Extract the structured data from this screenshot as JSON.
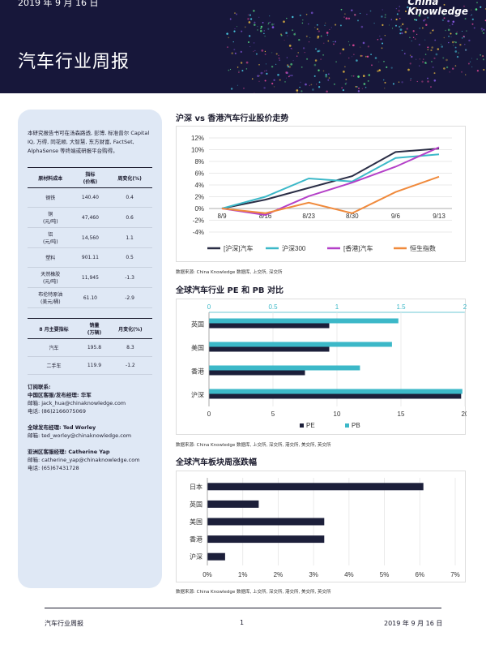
{
  "header": {
    "date": "2019 年 9 月 16 日",
    "title": "汽车行业周报",
    "logo_line1": "China",
    "logo_line2": "Knowledge"
  },
  "sidebar": {
    "intro": "本研究报告书可在汤森路透, 彭博, 标准普尔 Capital IQ, 万得, 同花顺, 大智慧, 东方财富, FactSet, AlphaSense 等终端或研报平台购得。",
    "table1": {
      "headers": [
        "原材料成本",
        "指标\n(价格)",
        "周变化(%)"
      ],
      "rows": [
        {
          "name": "钢铁",
          "value": "140.40",
          "change": "0.4"
        },
        {
          "name": "铜\n(元/吨)",
          "value": "47,460",
          "change": "0.6"
        },
        {
          "name": "铝\n(元/吨)",
          "value": "14,560",
          "change": "1.1"
        },
        {
          "name": "塑料",
          "value": "901.11",
          "change": "0.5"
        },
        {
          "name": "天然橡胶\n(元/吨)",
          "value": "11,945",
          "change": "-1.3"
        },
        {
          "name": "布伦特原油\n(美元/桶)",
          "value": "61.10",
          "change": "-2.9"
        }
      ]
    },
    "table2": {
      "headers": [
        "8 月主要指标",
        "销量\n(万辆)",
        "月变化(%)"
      ],
      "rows": [
        {
          "name": "汽车",
          "value": "195.8",
          "change": "8.3"
        },
        {
          "name": "二手车",
          "value": "119.9",
          "change": "-1.2"
        }
      ]
    },
    "contacts": {
      "c1_title": "订阅联系:",
      "c1_sub": "中国区客服/发布经理: 华军",
      "c1_email": "邮箱: jack_hua@chinaknowledge.com",
      "c1_phone": "电话: (86)2166075069",
      "c2_title": "全球发布经理: Ted Worley",
      "c2_email": "邮箱: ted_worley@chinaknowledge.com",
      "c3_title": "亚洲区客服经理: Catherine Yap",
      "c3_email": "邮箱: catherine_yap@chinaknowledge.com",
      "c3_phone": "电话: (65)67431728"
    }
  },
  "sections": {
    "s1_title": "沪深 vs 香港汽车行业股价走势",
    "s1_source": "数据来源: China Knowledge 数据库, 上交所, 深交所",
    "s2_title": "全球汽车行业 PE 和 PB 对比",
    "s2_source": "数据来源: China Knowledge 数据库, 上交所, 深交所, 港交所, 美交所, 英交所",
    "s3_title": "全球汽车板块周涨跌幅",
    "s3_source": "数据来源: China Knowledge 数据库, 上交所, 深交所, 港交所, 美交所, 英交所"
  },
  "footer": {
    "left": "汽车行业周报",
    "page": "1",
    "right": "2019 年 9 月 16 日"
  },
  "chart_data": [
    {
      "type": "line",
      "title": "沪深 vs 香港汽车行业股价走势",
      "x": [
        "8/9",
        "8/16",
        "8/23",
        "8/30",
        "9/6",
        "9/13"
      ],
      "ylim": [
        -4,
        12
      ],
      "yticks": [
        "12%",
        "10%",
        "8%",
        "6%",
        "4%",
        "2%",
        "0%",
        "-2%",
        "-4%"
      ],
      "legend_position": "bottom",
      "series": [
        {
          "name": "[沪深]汽车",
          "color": "#2a2d45",
          "values": [
            0,
            1.5,
            3.5,
            5.5,
            9.6,
            10.2
          ]
        },
        {
          "name": "沪深300",
          "color": "#3cb8c8",
          "values": [
            0,
            2.0,
            5.1,
            4.6,
            8.6,
            9.2
          ]
        },
        {
          "name": "[香港]汽车",
          "color": "#b440c8",
          "values": [
            0,
            -1.1,
            2.1,
            4.4,
            7.1,
            10.4
          ]
        },
        {
          "name": "恒生指数",
          "color": "#f08a3c",
          "values": [
            0,
            -0.8,
            1.0,
            -0.8,
            2.8,
            5.4
          ]
        }
      ]
    },
    {
      "type": "bar",
      "orientation": "horizontal",
      "title": "全球汽车行业 PE 和 PB 对比",
      "categories": [
        "英国",
        "美国",
        "香港",
        "沪深"
      ],
      "top_axis_ticks": [
        "0",
        "0.5",
        "1",
        "1.5",
        "2"
      ],
      "bottom_axis_ticks": [
        "0",
        "5",
        "10",
        "15",
        "20"
      ],
      "top_range": [
        0,
        2
      ],
      "bottom_range": [
        0,
        20
      ],
      "legend_position": "bottom",
      "series": [
        {
          "name": "PE",
          "color": "#1c1f3a",
          "axis": "bottom",
          "values": [
            9.4,
            9.4,
            7.5,
            19.7
          ]
        },
        {
          "name": "PB",
          "color": "#3cb8c8",
          "axis": "top",
          "values": [
            1.48,
            1.43,
            1.18,
            1.98
          ]
        }
      ]
    },
    {
      "type": "bar",
      "orientation": "horizontal",
      "title": "全球汽车板块周涨跌幅",
      "categories": [
        "日本",
        "英国",
        "美国",
        "香港",
        "沪深"
      ],
      "xticks": [
        "0%",
        "1%",
        "2%",
        "3%",
        "4%",
        "5%",
        "6%",
        "7%"
      ],
      "xlim": [
        0,
        7
      ],
      "series": [
        {
          "name": "",
          "color": "#1c1f3a",
          "values": [
            6.1,
            1.45,
            3.3,
            3.3,
            0.5
          ]
        }
      ]
    }
  ]
}
